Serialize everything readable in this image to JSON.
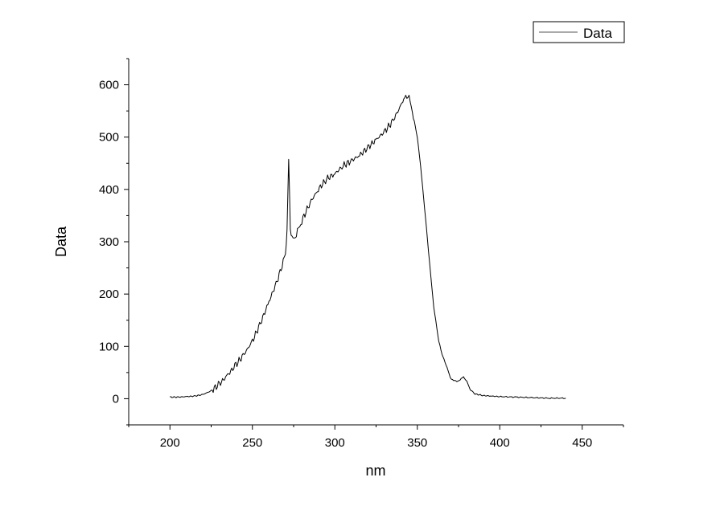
{
  "chart_data": {
    "type": "line",
    "title": "",
    "xlabel": "nm",
    "ylabel": "Data",
    "xlim": [
      175,
      475
    ],
    "ylim": [
      -50,
      650
    ],
    "x_ticks": [
      200,
      250,
      300,
      350,
      400,
      450
    ],
    "y_ticks": [
      0,
      100,
      200,
      300,
      400,
      500,
      600
    ],
    "grid": false,
    "legend": {
      "position": "top-right",
      "entries": [
        "Data"
      ]
    },
    "colors": {
      "line": "#000000",
      "axis": "#000000",
      "legend_line": "#555555"
    },
    "series": [
      {
        "name": "Data",
        "x": [
          200,
          205,
          210,
          215,
          220,
          225,
          230,
          235,
          240,
          245,
          250,
          255,
          260,
          265,
          268,
          270,
          271,
          272,
          273,
          274,
          276,
          280,
          285,
          290,
          295,
          300,
          305,
          310,
          315,
          320,
          325,
          330,
          335,
          340,
          343,
          345,
          347,
          350,
          352,
          355,
          358,
          360,
          363,
          365,
          368,
          370,
          372,
          374,
          376,
          378,
          380,
          382,
          385,
          390,
          395,
          400,
          410,
          420,
          430,
          440
        ],
        "y": [
          3,
          3,
          4,
          5,
          8,
          15,
          28,
          45,
          65,
          85,
          110,
          145,
          185,
          225,
          255,
          275,
          320,
          460,
          320,
          305,
          310,
          340,
          375,
          400,
          420,
          430,
          445,
          455,
          465,
          480,
          495,
          510,
          530,
          560,
          580,
          575,
          550,
          500,
          445,
          345,
          240,
          175,
          110,
          85,
          60,
          40,
          35,
          33,
          36,
          42,
          33,
          18,
          9,
          6,
          5,
          4,
          3,
          2,
          1,
          1
        ]
      }
    ]
  }
}
